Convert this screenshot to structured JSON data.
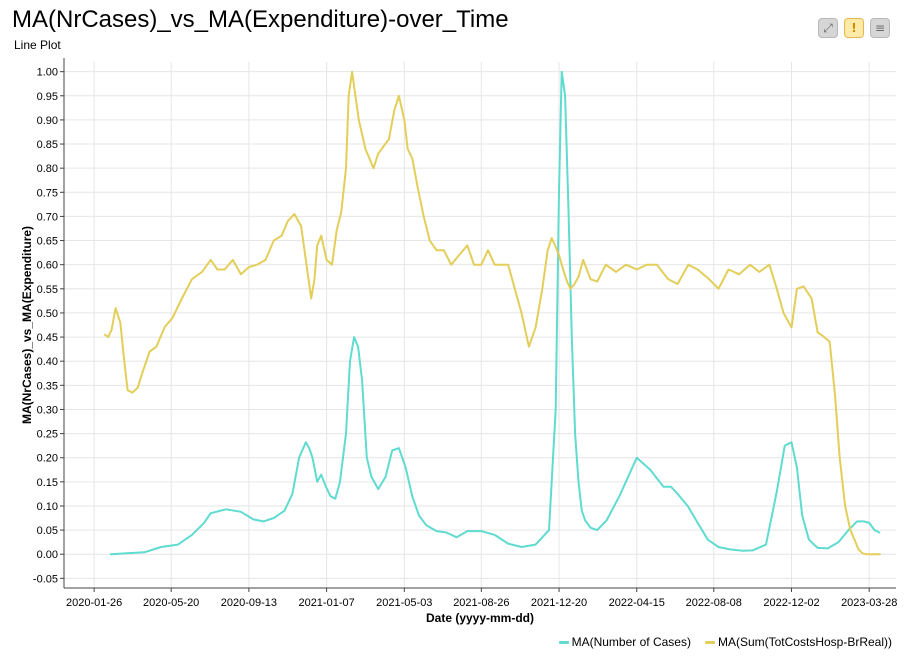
{
  "toolbar": {
    "fullscreen_icon": "fullscreen-icon",
    "warning_icon": "warning-icon",
    "menu_icon": "menu-icon"
  },
  "chart_data": {
    "type": "line",
    "title": "MA(NrCases)_vs_MA(Expenditure)-over_Time",
    "subtitle": "Line Plot",
    "xlabel": "Date (yyyy-mm-dd)",
    "ylabel": "MA(NrCases)_vs_MA(Expenditure)",
    "xlim": [
      "2019-12-12",
      "2023-05-07"
    ],
    "ylim": [
      -0.07,
      1.02
    ],
    "y_ticks": [
      -0.05,
      0,
      0.05,
      0.1,
      0.15,
      0.2,
      0.25,
      0.3,
      0.35,
      0.4,
      0.45,
      0.5,
      0.55,
      0.6,
      0.65,
      0.7,
      0.75,
      0.8,
      0.85,
      0.9,
      0.95,
      1
    ],
    "y_tick_labels": [
      "-0.05",
      "0.00",
      "0.05",
      "0.10",
      "0.15",
      "0.20",
      "0.25",
      "0.30",
      "0.35",
      "0.40",
      "0.45",
      "0.50",
      "0.55",
      "0.60",
      "0.65",
      "0.70",
      "0.75",
      "0.80",
      "0.85",
      "0.90",
      "0.95",
      "1.00"
    ],
    "x_ticks": [
      "2020-01-26",
      "2020-05-20",
      "2020-09-13",
      "2021-01-07",
      "2021-05-03",
      "2021-08-26",
      "2021-12-20",
      "2022-04-15",
      "2022-08-08",
      "2022-12-02",
      "2023-03-28"
    ],
    "grid": true,
    "legend_position": "bottom-right",
    "series": [
      {
        "name": "MA(Number of Cases)",
        "color": "#5fdbd0",
        "x": [
          "2020-02-20",
          "2020-03-15",
          "2020-04-10",
          "2020-05-05",
          "2020-05-30",
          "2020-06-20",
          "2020-07-08",
          "2020-07-18",
          "2020-08-10",
          "2020-09-01",
          "2020-09-20",
          "2020-10-05",
          "2020-10-20",
          "2020-11-05",
          "2020-11-17",
          "2020-11-27",
          "2020-12-07",
          "2020-12-12",
          "2020-12-17",
          "2020-12-24",
          "2020-12-30",
          "2021-01-06",
          "2021-01-13",
          "2021-01-20",
          "2021-01-27",
          "2021-02-05",
          "2021-02-11",
          "2021-02-17",
          "2021-02-23",
          "2021-03-01",
          "2021-03-08",
          "2021-03-15",
          "2021-03-25",
          "2021-04-05",
          "2021-04-15",
          "2021-04-25",
          "2021-05-05",
          "2021-05-15",
          "2021-05-25",
          "2021-06-05",
          "2021-06-20",
          "2021-07-05",
          "2021-07-20",
          "2021-08-05",
          "2021-08-26",
          "2021-09-15",
          "2021-10-05",
          "2021-10-25",
          "2021-11-15",
          "2021-12-05",
          "2021-12-15",
          "2021-12-20",
          "2021-12-24",
          "2021-12-29",
          "2022-01-03",
          "2022-01-08",
          "2022-01-13",
          "2022-01-18",
          "2022-01-23",
          "2022-01-28",
          "2022-02-05",
          "2022-02-15",
          "2022-03-01",
          "2022-03-20",
          "2022-04-15",
          "2022-05-05",
          "2022-05-25",
          "2022-06-05",
          "2022-06-15",
          "2022-06-30",
          "2022-07-15",
          "2022-07-30",
          "2022-08-15",
          "2022-09-01",
          "2022-09-20",
          "2022-10-05",
          "2022-10-25",
          "2022-11-10",
          "2022-11-22",
          "2022-12-02",
          "2022-12-10",
          "2022-12-18",
          "2022-12-28",
          "2023-01-10",
          "2023-01-25",
          "2023-02-10",
          "2023-02-25",
          "2023-03-10",
          "2023-03-20",
          "2023-03-28",
          "2023-04-05",
          "2023-04-12"
        ],
        "y": [
          0.0,
          0.002,
          0.004,
          0.015,
          0.02,
          0.04,
          0.065,
          0.085,
          0.093,
          0.088,
          0.072,
          0.068,
          0.075,
          0.09,
          0.125,
          0.2,
          0.232,
          0.22,
          0.2,
          0.15,
          0.165,
          0.14,
          0.12,
          0.115,
          0.15,
          0.25,
          0.4,
          0.45,
          0.43,
          0.36,
          0.2,
          0.16,
          0.135,
          0.16,
          0.215,
          0.22,
          0.18,
          0.12,
          0.08,
          0.06,
          0.048,
          0.045,
          0.035,
          0.048,
          0.048,
          0.04,
          0.022,
          0.015,
          0.02,
          0.05,
          0.3,
          0.75,
          1.0,
          0.95,
          0.72,
          0.45,
          0.25,
          0.15,
          0.09,
          0.07,
          0.055,
          0.05,
          0.07,
          0.12,
          0.2,
          0.175,
          0.14,
          0.14,
          0.125,
          0.1,
          0.065,
          0.03,
          0.015,
          0.01,
          0.007,
          0.008,
          0.02,
          0.13,
          0.225,
          0.232,
          0.18,
          0.08,
          0.03,
          0.013,
          0.012,
          0.025,
          0.05,
          0.068,
          0.068,
          0.065,
          0.05,
          0.045
        ]
      },
      {
        "name": "MA(Sum(TotCostsHosp-BrReal))",
        "color": "#e3ce5a",
        "x": [
          "2020-02-11",
          "2020-02-16",
          "2020-02-21",
          "2020-02-27",
          "2020-03-05",
          "2020-03-11",
          "2020-03-16",
          "2020-03-23",
          "2020-03-31",
          "2020-04-08",
          "2020-04-18",
          "2020-04-28",
          "2020-05-10",
          "2020-05-22",
          "2020-06-05",
          "2020-06-20",
          "2020-07-05",
          "2020-07-18",
          "2020-07-28",
          "2020-08-08",
          "2020-08-20",
          "2020-09-01",
          "2020-09-13",
          "2020-09-25",
          "2020-10-08",
          "2020-10-20",
          "2020-11-01",
          "2020-11-10",
          "2020-11-20",
          "2020-11-30",
          "2020-12-08",
          "2020-12-15",
          "2020-12-20",
          "2020-12-24",
          "2020-12-30",
          "2021-01-07",
          "2021-01-15",
          "2021-01-22",
          "2021-01-29",
          "2021-02-05",
          "2021-02-09",
          "2021-02-14",
          "2021-02-19",
          "2021-02-24",
          "2021-03-01",
          "2021-03-06",
          "2021-03-12",
          "2021-03-18",
          "2021-03-25",
          "2021-04-02",
          "2021-04-10",
          "2021-04-18",
          "2021-04-25",
          "2021-05-03",
          "2021-05-08",
          "2021-05-15",
          "2021-05-23",
          "2021-06-01",
          "2021-06-10",
          "2021-06-20",
          "2021-07-01",
          "2021-07-12",
          "2021-07-24",
          "2021-08-05",
          "2021-08-15",
          "2021-08-26",
          "2021-09-05",
          "2021-09-15",
          "2021-09-25",
          "2021-10-05",
          "2021-10-15",
          "2021-10-25",
          "2021-11-05",
          "2021-11-15",
          "2021-11-25",
          "2021-12-03",
          "2021-12-09",
          "2021-12-14",
          "2021-12-20",
          "2021-12-26",
          "2022-01-01",
          "2022-01-06",
          "2022-01-12",
          "2022-01-18",
          "2022-01-25",
          "2022-02-05",
          "2022-02-15",
          "2022-02-28",
          "2022-03-15",
          "2022-03-30",
          "2022-04-15",
          "2022-04-30",
          "2022-05-15",
          "2022-06-01",
          "2022-06-15",
          "2022-07-01",
          "2022-07-15",
          "2022-08-01",
          "2022-08-15",
          "2022-08-30",
          "2022-09-15",
          "2022-10-01",
          "2022-10-15",
          "2022-10-30",
          "2022-11-10",
          "2022-11-20",
          "2022-12-02",
          "2022-12-10",
          "2022-12-20",
          "2023-01-01",
          "2023-01-10",
          "2023-01-20",
          "2023-01-28",
          "2023-02-05",
          "2023-02-12",
          "2023-02-20",
          "2023-02-28",
          "2023-03-06",
          "2023-03-12",
          "2023-03-18",
          "2023-03-24",
          "2023-03-30",
          "2023-04-04",
          "2023-04-09",
          "2023-04-13"
        ],
        "y": [
          0.455,
          0.45,
          0.465,
          0.51,
          0.48,
          0.4,
          0.34,
          0.335,
          0.345,
          0.38,
          0.42,
          0.43,
          0.47,
          0.49,
          0.53,
          0.57,
          0.585,
          0.61,
          0.59,
          0.59,
          0.61,
          0.58,
          0.595,
          0.6,
          0.61,
          0.65,
          0.66,
          0.69,
          0.705,
          0.68,
          0.6,
          0.53,
          0.57,
          0.64,
          0.66,
          0.61,
          0.6,
          0.67,
          0.71,
          0.8,
          0.95,
          1.0,
          0.95,
          0.9,
          0.87,
          0.84,
          0.82,
          0.8,
          0.83,
          0.845,
          0.86,
          0.92,
          0.95,
          0.9,
          0.84,
          0.82,
          0.76,
          0.7,
          0.65,
          0.63,
          0.63,
          0.6,
          0.62,
          0.64,
          0.6,
          0.6,
          0.63,
          0.6,
          0.6,
          0.6,
          0.55,
          0.5,
          0.43,
          0.47,
          0.55,
          0.63,
          0.655,
          0.64,
          0.62,
          0.59,
          0.565,
          0.55,
          0.56,
          0.575,
          0.61,
          0.57,
          0.565,
          0.6,
          0.585,
          0.6,
          0.59,
          0.6,
          0.6,
          0.57,
          0.56,
          0.6,
          0.59,
          0.57,
          0.55,
          0.59,
          0.58,
          0.6,
          0.585,
          0.6,
          0.55,
          0.5,
          0.47,
          0.55,
          0.555,
          0.53,
          0.46,
          0.45,
          0.44,
          0.33,
          0.2,
          0.1,
          0.05,
          0.03,
          0.01,
          0.002,
          0.0,
          0.0,
          0.0,
          0.0,
          0.0
        ]
      }
    ]
  }
}
